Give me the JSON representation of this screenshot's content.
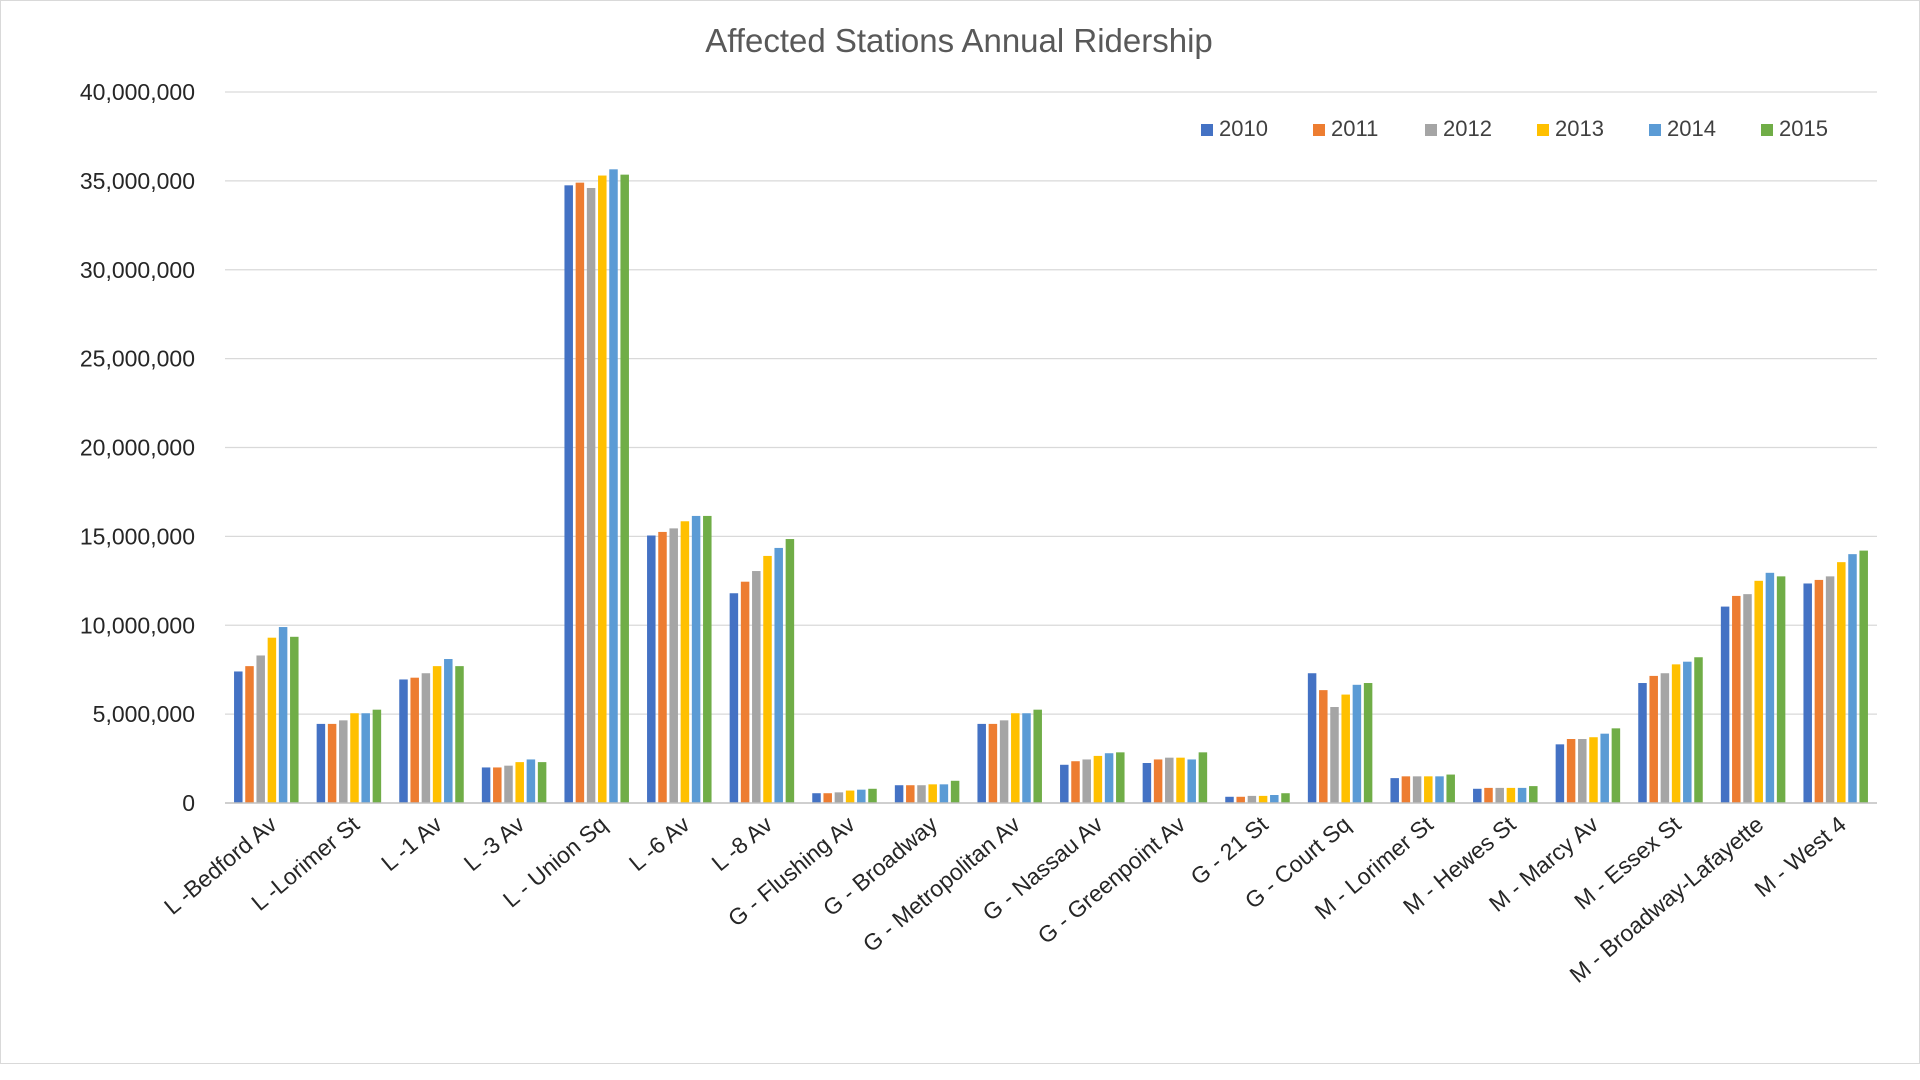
{
  "chart_data": {
    "type": "bar",
    "title": "Affected Stations Annual Ridership",
    "xlabel": "",
    "ylabel": "",
    "ylim": [
      0,
      40000000
    ],
    "yticks": [
      0,
      5000000,
      10000000,
      15000000,
      20000000,
      25000000,
      30000000,
      35000000,
      40000000
    ],
    "ytick_labels": [
      "0",
      "5,000,000",
      "10,000,000",
      "15,000,000",
      "20,000,000",
      "25,000,000",
      "30,000,000",
      "35,000,000",
      "40,000,000"
    ],
    "grid": true,
    "legend_position": "top-right",
    "categories": [
      "L -Bedford Av",
      "L -Lorimer St",
      "L -1 Av",
      "L -3 Av",
      "L - Union Sq",
      "L -6 Av",
      "L -8 Av",
      "G - Flushing Av",
      "G - Broadway",
      "G - Metropolitan Av",
      "G - Nassau Av",
      "G - Greenpoint Av",
      "G - 21 St",
      "G - Court Sq",
      "M - Lorimer St",
      "M - Hewes St",
      "M - Marcy Av",
      "M - Essex St",
      "M - Broadway-Lafayette",
      "M - West 4"
    ],
    "series": [
      {
        "name": "2010",
        "color": "#4472C4",
        "values": [
          7400000,
          4450000,
          6950000,
          2000000,
          34750000,
          15050000,
          11800000,
          550000,
          1000000,
          4450000,
          2150000,
          2250000,
          350000,
          7300000,
          1400000,
          800000,
          3300000,
          6750000,
          11050000,
          12350000
        ]
      },
      {
        "name": "2011",
        "color": "#ED7D31",
        "values": [
          7700000,
          4450000,
          7050000,
          2000000,
          34900000,
          15250000,
          12450000,
          550000,
          1000000,
          4450000,
          2350000,
          2450000,
          350000,
          6350000,
          1500000,
          850000,
          3600000,
          7150000,
          11650000,
          12550000
        ]
      },
      {
        "name": "2012",
        "color": "#A5A5A5",
        "values": [
          8300000,
          4650000,
          7300000,
          2100000,
          34600000,
          15450000,
          13050000,
          600000,
          1000000,
          4650000,
          2450000,
          2550000,
          400000,
          5400000,
          1500000,
          850000,
          3600000,
          7300000,
          11750000,
          12750000
        ]
      },
      {
        "name": "2013",
        "color": "#FFC000",
        "values": [
          9300000,
          5050000,
          7700000,
          2300000,
          35300000,
          15850000,
          13900000,
          700000,
          1050000,
          5050000,
          2650000,
          2550000,
          400000,
          6100000,
          1500000,
          850000,
          3700000,
          7800000,
          12500000,
          13550000
        ]
      },
      {
        "name": "2014",
        "color": "#5B9BD5",
        "values": [
          9900000,
          5050000,
          8100000,
          2450000,
          35650000,
          16150000,
          14350000,
          750000,
          1050000,
          5050000,
          2800000,
          2450000,
          450000,
          6650000,
          1500000,
          850000,
          3900000,
          7950000,
          12950000,
          14000000
        ]
      },
      {
        "name": "2015",
        "color": "#70AD47",
        "values": [
          9350000,
          5250000,
          7700000,
          2300000,
          35350000,
          16150000,
          14850000,
          800000,
          1250000,
          5250000,
          2850000,
          2850000,
          550000,
          6750000,
          1600000,
          950000,
          4200000,
          8200000,
          12750000,
          14200000
        ]
      }
    ]
  }
}
